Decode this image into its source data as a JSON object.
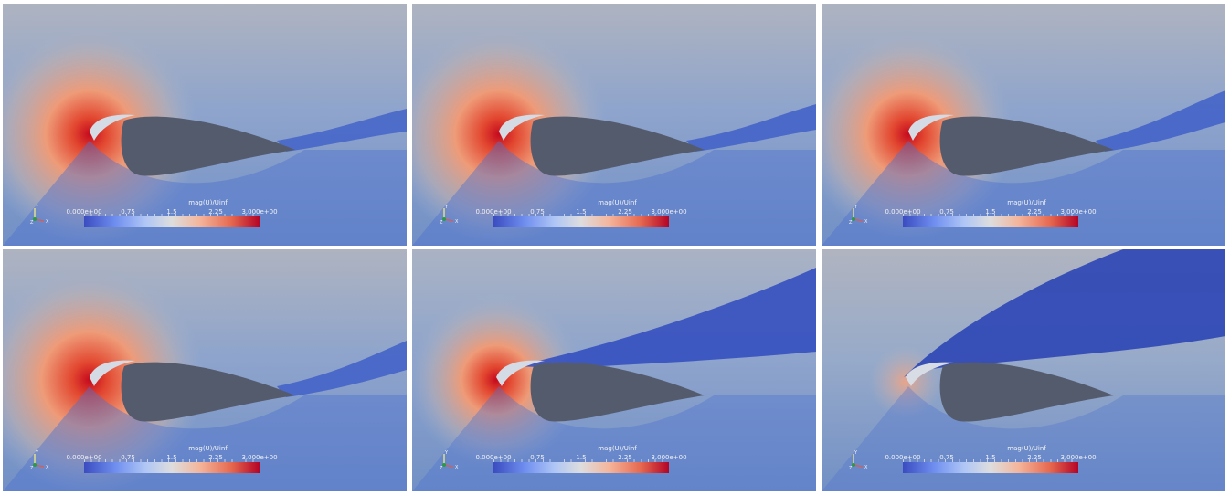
{
  "panels": [
    {
      "id": "a",
      "wake": "thin"
    },
    {
      "id": "b",
      "wake": "thin"
    },
    {
      "id": "c",
      "wake": "thin"
    },
    {
      "id": "d",
      "wake": "thin"
    },
    {
      "id": "e",
      "wake": "thick"
    },
    {
      "id": "f",
      "wake": "separated"
    }
  ],
  "legend": {
    "title": "mag(U)/Uinf",
    "ticks": [
      "0.000e+00",
      "0.75",
      "1.5",
      "2.25",
      "3.000e+00"
    ]
  },
  "axes": {
    "y": "Y",
    "z": "Z",
    "x": "X"
  },
  "colors": {
    "background": "#7d96c2",
    "body": "#545b6d",
    "low": "#3b4cc0",
    "mid": "#dddddd",
    "high": "#b40426"
  }
}
